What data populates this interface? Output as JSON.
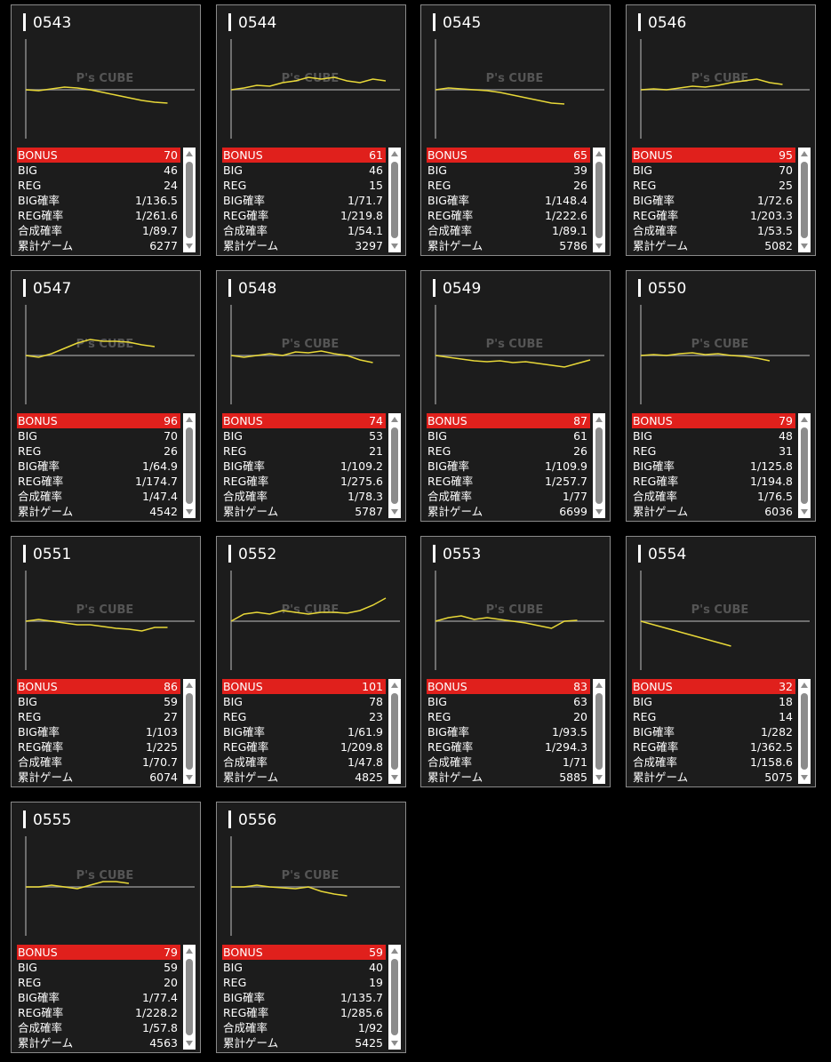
{
  "watermark": "P's CUBE",
  "row_labels": [
    "BONUS",
    "BIG",
    "REG",
    "BIG確率",
    "REG確率",
    "合成確率",
    "累計ゲーム"
  ],
  "cards": [
    {
      "id": "0543",
      "graph": [
        0,
        -1,
        1,
        3,
        2,
        0,
        -3,
        -6,
        -9,
        -12,
        -14,
        -15
      ],
      "values": [
        70,
        46,
        24,
        "1/136.5",
        "1/261.6",
        "1/89.7",
        6277
      ]
    },
    {
      "id": "0544",
      "graph": [
        0,
        2,
        5,
        4,
        8,
        10,
        14,
        12,
        14,
        10,
        8,
        12,
        10
      ],
      "values": [
        61,
        46,
        15,
        "1/71.7",
        "1/219.8",
        "1/54.1",
        3297
      ]
    },
    {
      "id": "0545",
      "graph": [
        0,
        2,
        1,
        0,
        -1,
        -3,
        -6,
        -9,
        -12,
        -15,
        -16
      ],
      "values": [
        65,
        39,
        26,
        "1/148.4",
        "1/222.6",
        "1/89.1",
        5786
      ]
    },
    {
      "id": "0546",
      "graph": [
        0,
        1,
        0,
        2,
        4,
        3,
        5,
        8,
        10,
        12,
        8,
        6
      ],
      "values": [
        95,
        70,
        25,
        "1/72.6",
        "1/203.3",
        "1/53.5",
        5082
      ]
    },
    {
      "id": "0547",
      "graph": [
        0,
        -2,
        2,
        8,
        14,
        18,
        16,
        16,
        15,
        12,
        10
      ],
      "values": [
        96,
        70,
        26,
        "1/64.9",
        "1/174.7",
        "1/47.4",
        4542
      ]
    },
    {
      "id": "0548",
      "graph": [
        0,
        -2,
        0,
        2,
        0,
        4,
        3,
        5,
        2,
        0,
        -5,
        -8
      ],
      "values": [
        74,
        53,
        21,
        "1/109.2",
        "1/275.6",
        "1/78.3",
        5787
      ]
    },
    {
      "id": "0549",
      "graph": [
        0,
        -2,
        -4,
        -6,
        -7,
        -6,
        -8,
        -7,
        -9,
        -11,
        -13,
        -9,
        -5
      ],
      "values": [
        87,
        61,
        26,
        "1/109.9",
        "1/257.7",
        "1/77",
        6699
      ]
    },
    {
      "id": "0550",
      "graph": [
        0,
        1,
        0,
        2,
        3,
        1,
        2,
        0,
        -1,
        -3,
        -6
      ],
      "values": [
        79,
        48,
        31,
        "1/125.8",
        "1/194.8",
        "1/76.5",
        6036
      ]
    },
    {
      "id": "0551",
      "graph": [
        0,
        2,
        0,
        -2,
        -4,
        -4,
        -6,
        -8,
        -9,
        -11,
        -7,
        -7
      ],
      "values": [
        86,
        59,
        27,
        "1/103",
        "1/225",
        "1/70.7",
        6074
      ]
    },
    {
      "id": "0552",
      "graph": [
        0,
        8,
        10,
        8,
        12,
        10,
        8,
        10,
        10,
        9,
        12,
        18,
        26
      ],
      "values": [
        101,
        78,
        23,
        "1/61.9",
        "1/209.8",
        "1/47.8",
        4825
      ]
    },
    {
      "id": "0553",
      "graph": [
        0,
        4,
        6,
        2,
        4,
        2,
        0,
        -2,
        -5,
        -8,
        0,
        1
      ],
      "values": [
        83,
        63,
        20,
        "1/93.5",
        "1/294.3",
        "1/71",
        5885
      ]
    },
    {
      "id": "0554",
      "graph": [
        0,
        -4,
        -8,
        -12,
        -16,
        -20,
        -24,
        -28
      ],
      "values": [
        32,
        18,
        14,
        "1/282",
        "1/362.5",
        "1/158.6",
        5075
      ]
    },
    {
      "id": "0555",
      "graph": [
        0,
        0,
        2,
        0,
        -2,
        2,
        6,
        6,
        4
      ],
      "values": [
        79,
        59,
        20,
        "1/77.4",
        "1/228.2",
        "1/57.8",
        4563
      ]
    },
    {
      "id": "0556",
      "graph": [
        0,
        0,
        2,
        0,
        -1,
        -2,
        0,
        -5,
        -8,
        -10
      ],
      "values": [
        59,
        40,
        19,
        "1/135.7",
        "1/285.6",
        "1/92",
        5425
      ]
    }
  ]
}
